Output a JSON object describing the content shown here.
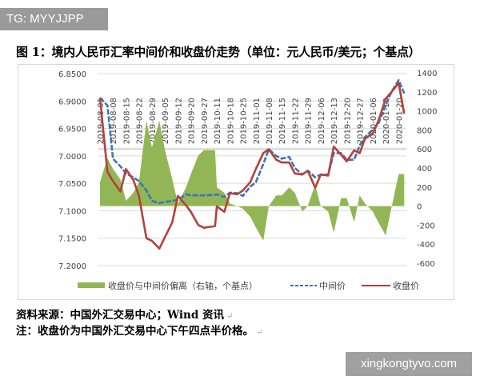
{
  "watermark_top": "TG: MYYJJPP",
  "watermark_bottom": "xingkongtyvo.com",
  "title": "图 1：境内人民币汇率中间价和收盘价走势（单位：元人民币/美元；个基点）",
  "notes": {
    "source": "资料来源：中国外汇交易中心；Wind 资讯",
    "note": "注：收盘价为中国外汇交易中心下午四点半价格。"
  },
  "chart_data": {
    "type": "line",
    "title": "",
    "left_axis": {
      "ticks": [
        "6.8500",
        "6.9000",
        "6.9500",
        "7.0000",
        "7.0500",
        "7.1000",
        "7.1500",
        "7.2000"
      ],
      "range": [
        6.85,
        7.2
      ],
      "inverted": true
    },
    "right_axis": {
      "ticks": [
        "1400",
        "1200",
        "1000",
        "800",
        "600",
        "400",
        "200",
        "0",
        "-200",
        "-400",
        "-600"
      ],
      "range": [
        -600,
        1400
      ]
    },
    "x_tick_labels": [
      "2019-08-01",
      "2019-08-08",
      "2019-08-15",
      "2019-08-22",
      "2019-08-29",
      "2019-09-05",
      "2019-09-12",
      "2019-09-20",
      "2019-09-27",
      "2019-10-11",
      "2019-10-18",
      "2019-10-25",
      "2019-11-01",
      "2019-11-08",
      "2019-11-15",
      "2019-11-22",
      "2019-11-29",
      "2019-12-06",
      "2019-12-13",
      "2019-12-20",
      "2019-12-27",
      "2020-01-06",
      "2020-01-13",
      "2020-01-20"
    ],
    "x": [
      "2019-08-01",
      "2019-08-05",
      "2019-08-08",
      "2019-08-12",
      "2019-08-15",
      "2019-08-19",
      "2019-08-22",
      "2019-08-26",
      "2019-08-29",
      "2019-09-02",
      "2019-09-05",
      "2019-09-09",
      "2019-09-12",
      "2019-09-17",
      "2019-09-20",
      "2019-09-24",
      "2019-09-27",
      "2019-10-09",
      "2019-10-11",
      "2019-10-15",
      "2019-10-18",
      "2019-10-22",
      "2019-10-25",
      "2019-10-29",
      "2019-11-01",
      "2019-11-05",
      "2019-11-08",
      "2019-11-12",
      "2019-11-15",
      "2019-11-19",
      "2019-11-22",
      "2019-11-26",
      "2019-11-29",
      "2019-12-03",
      "2019-12-06",
      "2019-12-10",
      "2019-12-13",
      "2019-12-17",
      "2019-12-20",
      "2019-12-24",
      "2019-12-27",
      "2019-12-31",
      "2020-01-06",
      "2020-01-09",
      "2020-01-13",
      "2020-01-16",
      "2020-01-20",
      "2020-01-23"
    ],
    "grid": true,
    "legend_position": "bottom",
    "series": [
      {
        "name": "收盘价与中间价偏离（右轴，个基点）",
        "type": "area",
        "axis": "right",
        "color": "#92b655",
        "values": [
          252,
          504,
          392,
          280,
          56,
          140,
          252,
          896,
          616,
          896,
          588,
          280,
          28,
          196,
          336,
          532,
          588,
          588,
          196,
          140,
          28,
          0,
          -28,
          -112,
          -224,
          -364,
          0,
          112,
          112,
          196,
          140,
          -56,
          0,
          224,
          0,
          -56,
          -280,
          84,
          84,
          -168,
          112,
          28,
          -56,
          -168,
          -308,
          -28,
          336,
          336
        ]
      },
      {
        "name": "中间价",
        "type": "line",
        "style": "dashed",
        "axis": "left",
        "color": "#3f74b5",
        "values": [
          6.894,
          6.908,
          7.005,
          7.019,
          7.032,
          7.039,
          7.046,
          7.063,
          7.082,
          7.086,
          7.084,
          7.082,
          7.08,
          7.07,
          7.072,
          7.072,
          7.072,
          7.071,
          7.07,
          7.075,
          7.067,
          7.068,
          7.073,
          7.056,
          7.048,
          7.015,
          6.988,
          7.0,
          7.005,
          7.002,
          7.022,
          7.034,
          7.027,
          7.039,
          7.034,
          7.034,
          6.995,
          6.995,
          7.007,
          7.007,
          6.981,
          6.966,
          6.952,
          6.942,
          6.908,
          6.884,
          6.862,
          6.886
        ]
      },
      {
        "name": "收盘价",
        "type": "line",
        "style": "solid",
        "axis": "left",
        "color": "#b5403a",
        "values": [
          6.894,
          7.029,
          7.046,
          7.065,
          7.024,
          7.044,
          7.073,
          7.15,
          7.155,
          7.169,
          7.148,
          7.121,
          7.073,
          7.09,
          7.102,
          7.126,
          7.131,
          7.128,
          7.092,
          7.102,
          7.068,
          7.07,
          7.063,
          7.048,
          7.024,
          6.995,
          6.988,
          7.007,
          7.012,
          7.012,
          7.032,
          7.034,
          7.027,
          7.058,
          7.034,
          7.036,
          6.983,
          6.998,
          7.01,
          6.99,
          6.995,
          6.969,
          6.959,
          6.937,
          6.896,
          6.884,
          6.867,
          6.923
        ]
      }
    ]
  }
}
